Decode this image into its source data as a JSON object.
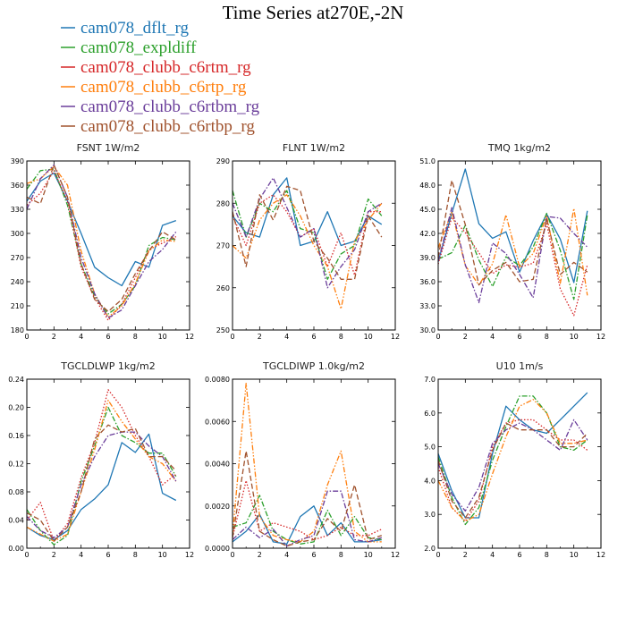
{
  "title": "Time Series at270E,-2N",
  "legend": [
    {
      "label": "cam078_dflt_rg",
      "color": "#1f77b4",
      "dash": "solid"
    },
    {
      "label": "cam078_expldiff",
      "color": "#2ca02c",
      "dash": "dashdot"
    },
    {
      "label": "cam078_clubb_c6rtm_rg",
      "color": "#d62728",
      "dash": "dotted"
    },
    {
      "label": "cam078_clubb_c6rtp_rg",
      "color": "#ff7f0e",
      "dash": "dashdotdot"
    },
    {
      "label": "cam078_clubb_c6rtbm_rg",
      "color": "#6a3d9a",
      "dash": "dashdot"
    },
    {
      "label": "cam078_clubb_c6rtbp_rg",
      "color": "#a0522d",
      "dash": "dashed"
    }
  ],
  "chart_data": [
    {
      "type": "line",
      "title": "FSNT   1W/m2",
      "x": [
        0,
        1,
        2,
        3,
        4,
        5,
        6,
        7,
        8,
        9,
        10,
        11
      ],
      "xlim": [
        0,
        12
      ],
      "xticks": [
        "0",
        "2",
        "4",
        "6",
        "8",
        "10",
        "12"
      ],
      "ylim": [
        180,
        390
      ],
      "yticks": [
        "180",
        "210",
        "240",
        "270",
        "300",
        "330",
        "360",
        "390"
      ],
      "series": [
        {
          "values": [
            340,
            365,
            375,
            340,
            300,
            258,
            245,
            235,
            265,
            258,
            310,
            316
          ]
        },
        {
          "values": [
            355,
            378,
            380,
            335,
            262,
            222,
            200,
            212,
            235,
            285,
            295,
            292
          ]
        },
        {
          "values": [
            335,
            350,
            378,
            340,
            258,
            220,
            192,
            212,
            245,
            280,
            288,
            296
          ]
        },
        {
          "values": [
            362,
            368,
            383,
            360,
            278,
            225,
            196,
            210,
            238,
            278,
            292,
            290
          ]
        },
        {
          "values": [
            330,
            368,
            385,
            345,
            270,
            225,
            195,
            205,
            235,
            265,
            280,
            302
          ]
        },
        {
          "values": [
            345,
            337,
            385,
            345,
            262,
            218,
            203,
            218,
            250,
            278,
            302,
            292
          ]
        }
      ]
    },
    {
      "type": "line",
      "title": "FLNT   1W/m2",
      "x": [
        0,
        1,
        2,
        3,
        4,
        5,
        6,
        7,
        8,
        9,
        10,
        11
      ],
      "xlim": [
        0,
        12
      ],
      "xticks": [
        "0",
        "2",
        "4",
        "6",
        "8",
        "10",
        "12"
      ],
      "ylim": [
        250,
        290
      ],
      "yticks": [
        "250",
        "260",
        "270",
        "280",
        "290"
      ],
      "series": [
        {
          "values": [
            277,
            273,
            272,
            282,
            286,
            270,
            271,
            278,
            270,
            271,
            277,
            275
          ]
        },
        {
          "values": [
            283,
            272,
            280,
            278,
            283,
            274,
            273,
            262,
            268,
            270,
            281,
            277
          ]
        },
        {
          "values": [
            277,
            270,
            280,
            282,
            278,
            272,
            274,
            265,
            273,
            263,
            278,
            278
          ]
        },
        {
          "values": [
            270,
            267,
            276,
            280,
            282,
            277,
            270,
            265,
            255,
            271,
            276,
            280
          ]
        },
        {
          "values": [
            280,
            272,
            281,
            286,
            279,
            272,
            274,
            260,
            265,
            269,
            278,
            280
          ]
        },
        {
          "values": [
            278,
            265,
            282,
            276,
            284,
            283,
            271,
            267,
            262,
            262,
            277,
            272
          ]
        }
      ]
    },
    {
      "type": "line",
      "title": "TMQ   1kg/m2",
      "x": [
        0,
        1,
        2,
        3,
        4,
        5,
        6,
        7,
        8,
        9,
        10,
        11
      ],
      "xlim": [
        0,
        12
      ],
      "xticks": [
        "0",
        "2",
        "4",
        "6",
        "8",
        "10",
        "12"
      ],
      "ylim": [
        30.0,
        51.0
      ],
      "yticks": [
        "30.0",
        "33.0",
        "36.0",
        "39.0",
        "42.0",
        "45.0",
        "48.0",
        "51.0"
      ],
      "series": [
        {
          "values": [
            38.5,
            44.5,
            50.0,
            43.2,
            41.4,
            42.2,
            37.2,
            41.1,
            44.4,
            41.3,
            35.9,
            44.8
          ]
        },
        {
          "values": [
            38.8,
            39.6,
            43.0,
            38.7,
            35.4,
            39.1,
            38.0,
            40.3,
            44.5,
            39.9,
            33.8,
            44.3
          ]
        },
        {
          "values": [
            38.2,
            44.0,
            42.1,
            39.6,
            37.0,
            38.1,
            37.8,
            38.3,
            43.2,
            35.1,
            31.8,
            38.1
          ]
        },
        {
          "values": [
            40.2,
            44.7,
            38.0,
            35.6,
            38.2,
            44.3,
            37.8,
            39.5,
            44.2,
            35.8,
            45.1,
            34.3
          ]
        },
        {
          "values": [
            38.5,
            45.2,
            38.1,
            33.4,
            40.8,
            39.5,
            36.9,
            34.0,
            44.1,
            43.9,
            42.0,
            40.3
          ]
        },
        {
          "values": [
            39.0,
            48.6,
            43.1,
            35.6,
            37.4,
            38.4,
            36.0,
            36.3,
            43.8,
            36.9,
            38.4,
            37.2
          ]
        }
      ]
    },
    {
      "type": "line",
      "title": "TGCLDLWP   1kg/m2",
      "x": [
        0,
        1,
        2,
        3,
        4,
        5,
        6,
        7,
        8,
        9,
        10,
        11
      ],
      "xlim": [
        0,
        12
      ],
      "xticks": [
        "0",
        "2",
        "4",
        "6",
        "8",
        "10",
        "12"
      ],
      "ylim": [
        0.0,
        0.24
      ],
      "yticks": [
        "0.00",
        "0.04",
        "0.08",
        "0.12",
        "0.16",
        "0.20",
        "0.24"
      ],
      "series": [
        {
          "values": [
            0.03,
            0.018,
            0.012,
            0.025,
            0.055,
            0.07,
            0.09,
            0.15,
            0.136,
            0.162,
            0.078,
            0.068
          ]
        },
        {
          "values": [
            0.055,
            0.025,
            0.005,
            0.018,
            0.095,
            0.145,
            0.2,
            0.16,
            0.15,
            0.135,
            0.135,
            0.102
          ]
        },
        {
          "values": [
            0.04,
            0.065,
            0.01,
            0.035,
            0.1,
            0.15,
            0.225,
            0.2,
            0.16,
            0.13,
            0.09,
            0.105
          ]
        },
        {
          "values": [
            0.03,
            0.02,
            0.01,
            0.02,
            0.08,
            0.14,
            0.21,
            0.18,
            0.155,
            0.13,
            0.12,
            0.095
          ]
        },
        {
          "values": [
            0.045,
            0.025,
            0.015,
            0.03,
            0.09,
            0.13,
            0.16,
            0.165,
            0.165,
            0.145,
            0.13,
            0.095
          ]
        },
        {
          "values": [
            0.05,
            0.04,
            0.01,
            0.03,
            0.08,
            0.155,
            0.175,
            0.165,
            0.17,
            0.13,
            0.13,
            0.11
          ]
        }
      ]
    },
    {
      "type": "line",
      "title": "TGCLDIWP   1.0kg/m2",
      "x": [
        0,
        1,
        2,
        3,
        4,
        5,
        6,
        7,
        8,
        9,
        10,
        11
      ],
      "xlim": [
        0,
        12
      ],
      "xticks": [
        "0",
        "2",
        "4",
        "6",
        "8",
        "10",
        "12"
      ],
      "ylim": [
        0.0,
        0.008
      ],
      "yticks": [
        "0.0000",
        "0.0020",
        "0.0040",
        "0.0060",
        "0.0080"
      ],
      "series": [
        {
          "values": [
            0.0003,
            0.0008,
            0.0016,
            0.0003,
            0.0002,
            0.0015,
            0.002,
            0.0006,
            0.0012,
            0.0003,
            0.0003,
            0.0004
          ]
        },
        {
          "values": [
            0.001,
            0.0012,
            0.0025,
            0.0008,
            0.0004,
            0.0002,
            0.0003,
            0.0018,
            0.0006,
            0.0015,
            0.0005,
            0.0004
          ]
        },
        {
          "values": [
            0.0005,
            0.0032,
            0.0008,
            0.0012,
            0.001,
            0.0008,
            0.0004,
            0.0006,
            0.001,
            0.0006,
            0.0006,
            0.0009
          ]
        },
        {
          "values": [
            0.0006,
            0.0078,
            0.0015,
            0.0006,
            0.0004,
            0.0003,
            0.0008,
            0.003,
            0.0046,
            0.0008,
            0.0003,
            0.0003
          ]
        },
        {
          "values": [
            0.0004,
            0.001,
            0.0005,
            0.0009,
            0.0001,
            0.0004,
            0.0006,
            0.0027,
            0.0027,
            0.0004,
            0.0003,
            0.0005
          ]
        },
        {
          "values": [
            0.0005,
            0.0046,
            0.0008,
            0.0004,
            0.0001,
            0.0003,
            0.0004,
            0.0014,
            0.0008,
            0.003,
            0.0004,
            0.0006
          ]
        }
      ]
    },
    {
      "type": "line",
      "title": "U10   1m/s",
      "x": [
        0,
        1,
        2,
        3,
        4,
        5,
        6,
        7,
        8,
        9,
        10,
        11
      ],
      "xlim": [
        0,
        12
      ],
      "xticks": [
        "0",
        "2",
        "4",
        "6",
        "8",
        "10",
        "12"
      ],
      "ylim": [
        2.0,
        7.0
      ],
      "yticks": [
        "2.0",
        "3.0",
        "4.0",
        "5.0",
        "6.0",
        "7.0"
      ],
      "series": [
        {
          "values": [
            4.8,
            3.7,
            2.9,
            2.9,
            4.8,
            6.2,
            5.8,
            5.5,
            5.4,
            5.8,
            6.2,
            6.6
          ]
        },
        {
          "values": [
            4.7,
            3.5,
            2.7,
            3.2,
            4.6,
            5.6,
            6.5,
            6.5,
            6.0,
            5.0,
            4.9,
            5.2
          ]
        },
        {
          "values": [
            4.4,
            3.2,
            2.8,
            3.4,
            5.0,
            5.7,
            5.8,
            5.8,
            5.5,
            5.2,
            5.2,
            4.9
          ]
        },
        {
          "values": [
            4.0,
            3.2,
            2.8,
            3.0,
            4.2,
            5.3,
            6.2,
            6.4,
            6.0,
            5.1,
            5.1,
            5.2
          ]
        },
        {
          "values": [
            4.5,
            3.6,
            3.1,
            3.8,
            5.1,
            5.5,
            5.7,
            5.5,
            5.2,
            4.9,
            5.8,
            5.2
          ]
        },
        {
          "values": [
            4.6,
            3.4,
            2.9,
            3.5,
            4.9,
            5.7,
            5.5,
            5.5,
            5.5,
            5.0,
            5.0,
            5.4
          ]
        }
      ]
    }
  ]
}
